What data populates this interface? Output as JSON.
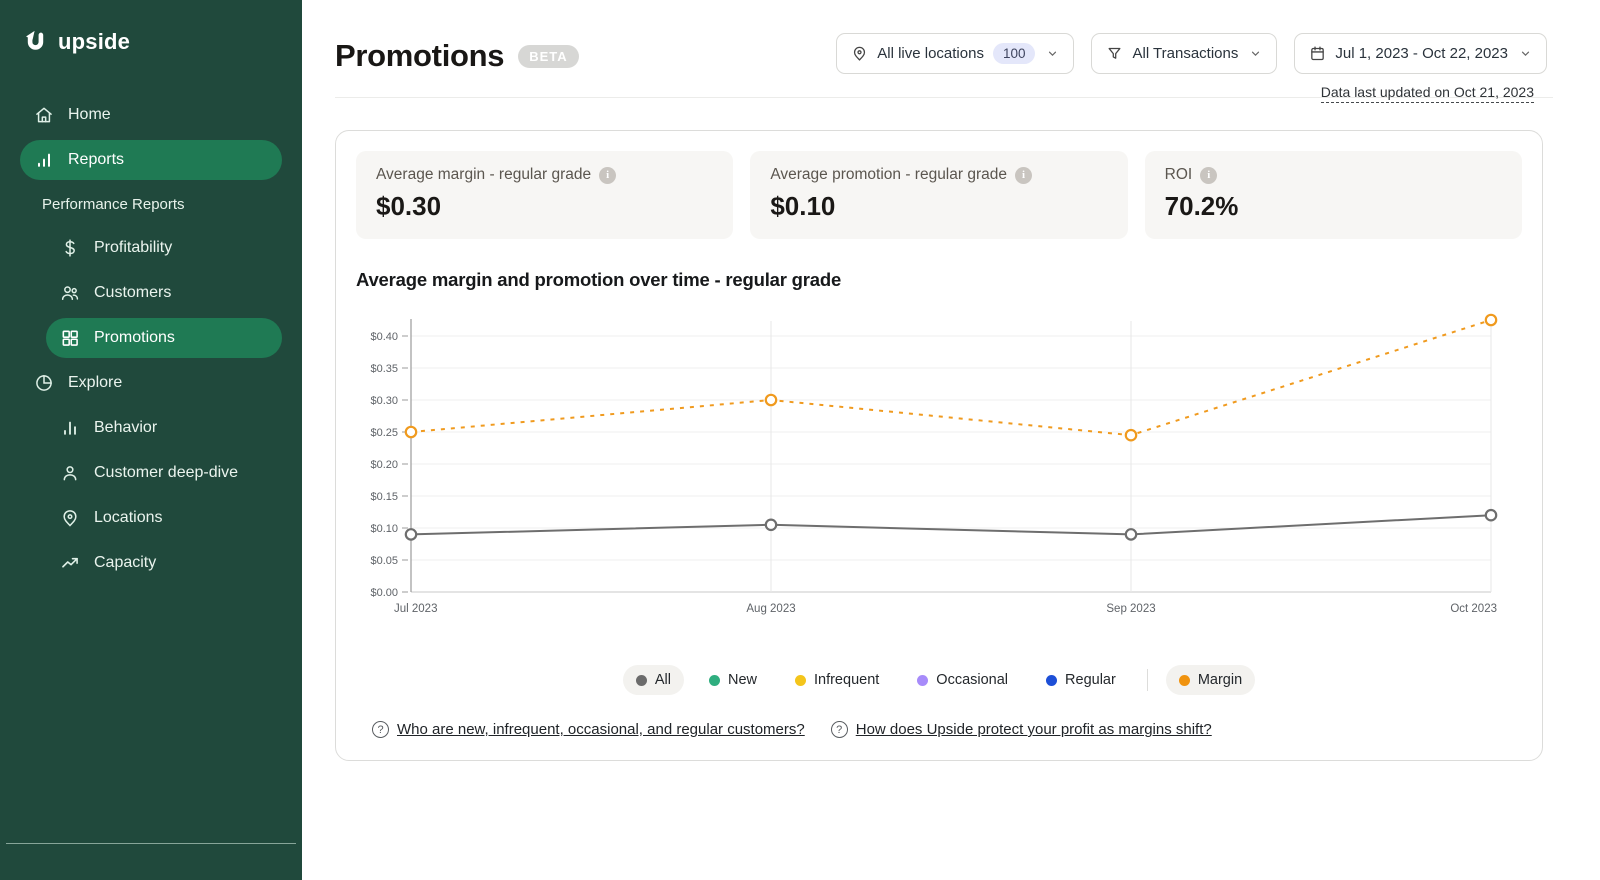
{
  "sidebar": {
    "logo_text": "upside",
    "items": [
      {
        "label": "Home",
        "icon": "home-icon"
      },
      {
        "label": "Reports",
        "icon": "bar-chart-icon",
        "active": true
      },
      {
        "label": "Performance Reports",
        "type": "section"
      },
      {
        "label": "Profitability",
        "icon": "dollar-icon"
      },
      {
        "label": "Customers",
        "icon": "users-icon"
      },
      {
        "label": "Promotions",
        "icon": "grid-icon",
        "active": true
      },
      {
        "label": "Explore",
        "icon": "pie-chart-icon"
      },
      {
        "label": "Behavior",
        "icon": "column-chart-icon"
      },
      {
        "label": "Customer deep-dive",
        "icon": "user-icon"
      },
      {
        "label": "Locations",
        "icon": "map-pin-icon"
      },
      {
        "label": "Capacity",
        "icon": "trend-up-icon"
      }
    ]
  },
  "header": {
    "title": "Promotions",
    "badge": "BETA",
    "filters": {
      "locations": {
        "label": "All live locations",
        "count": "100",
        "icon": "location-pin-icon"
      },
      "transactions": {
        "label": "All Transactions",
        "icon": "funnel-icon"
      },
      "date_range": {
        "label": "Jul 1, 2023 - Oct 22, 2023",
        "icon": "calendar-icon"
      }
    },
    "last_updated": "Data last updated on Oct 21, 2023"
  },
  "metrics": [
    {
      "label": "Average margin - regular grade",
      "value": "$0.30"
    },
    {
      "label": "Average promotion - regular grade",
      "value": "$0.10"
    },
    {
      "label": "ROI",
      "value": "70.2%"
    }
  ],
  "chart_data": {
    "type": "line",
    "title": "Average margin and promotion over time - regular grade",
    "x": [
      "Jul 2023",
      "Aug 2023",
      "Sep 2023",
      "Oct 2023"
    ],
    "series": [
      {
        "name": "Margin",
        "color": "#F09A1E",
        "line_style": "dashed",
        "marker": "open-circle",
        "values": [
          0.25,
          0.3,
          0.245,
          0.425
        ]
      },
      {
        "name": "Promotion - All customers",
        "color": "#6E6E6E",
        "line_style": "solid",
        "marker": "open-circle",
        "values": [
          0.09,
          0.105,
          0.09,
          0.12
        ]
      }
    ],
    "ylim": [
      0,
      0.425
    ],
    "ytick_step": 0.05,
    "ytick_max": 0.4,
    "ytick_format": "$0.00",
    "grid": true,
    "legend_position": "bottom"
  },
  "legend": {
    "items": [
      {
        "label": "All",
        "color": "#6B6B6B",
        "selected": true
      },
      {
        "label": "New",
        "color": "#2FAE7F",
        "selected": false
      },
      {
        "label": "Infrequent",
        "color": "#F4C51B",
        "selected": false
      },
      {
        "label": "Occasional",
        "color": "#A78BFA",
        "selected": false
      },
      {
        "label": "Regular",
        "color": "#1D4FD7",
        "selected": false
      },
      {
        "label": "Margin",
        "color": "#F0930F",
        "selected": true
      }
    ]
  },
  "footer_links": [
    {
      "label": "Who are new, infrequent, occasional, and regular customers?",
      "icon": "help-circle-icon"
    },
    {
      "label": "How does Upside protect your profit as margins shift?",
      "icon": "help-circle-icon"
    }
  ],
  "colors": {
    "sidebar_bg": "#20493C",
    "sidebar_active_pill": "#1F7A54",
    "margin_line": "#F09A1E",
    "promotion_line": "#6E6E6E",
    "axis_text": "#5F6368"
  }
}
